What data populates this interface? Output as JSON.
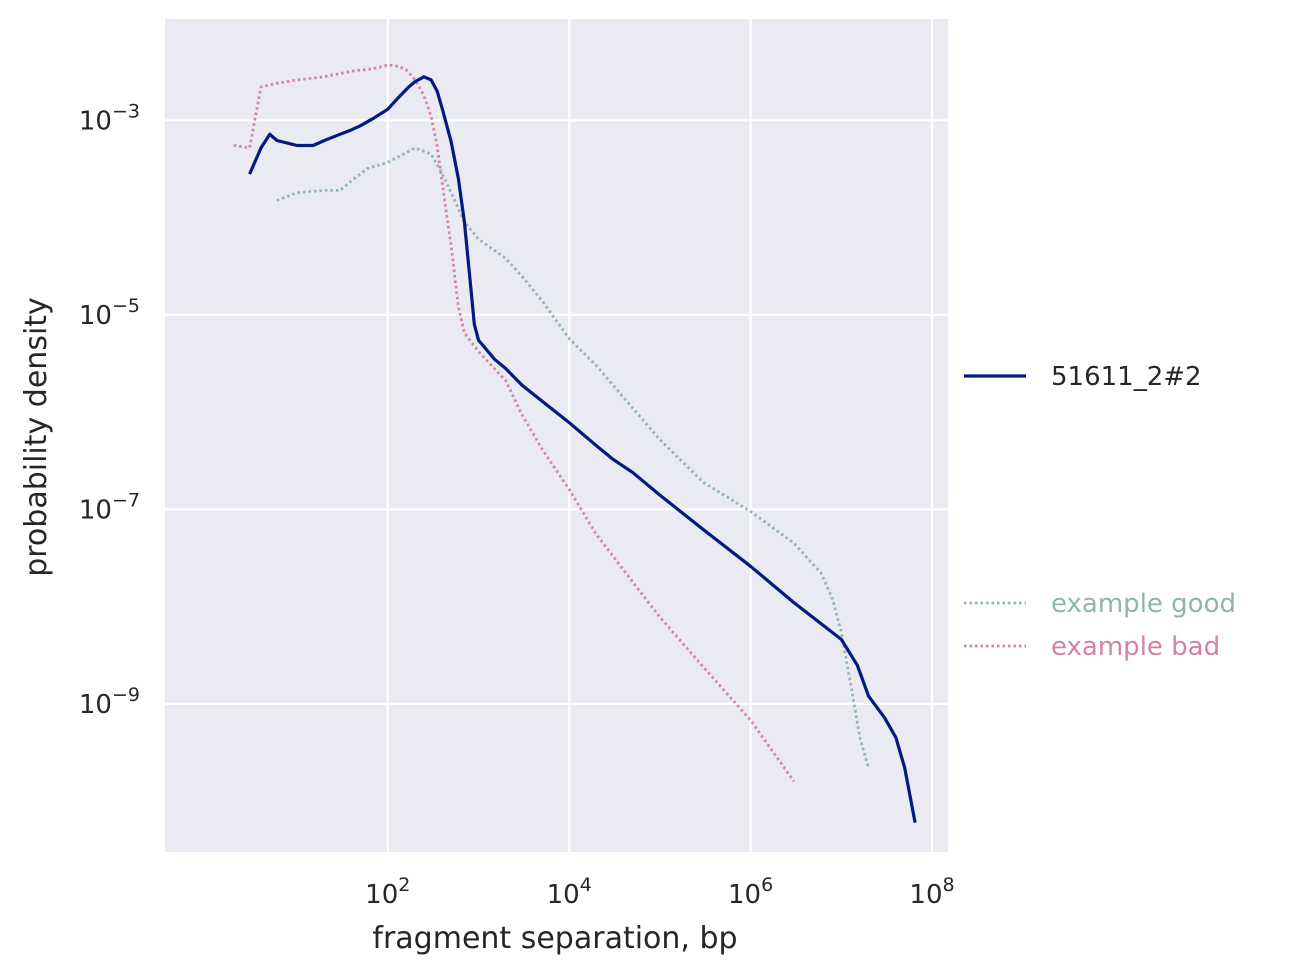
{
  "chart_data": {
    "type": "line",
    "xlabel": "fragment separation, bp",
    "ylabel": "probability density",
    "xscale": "log",
    "yscale": "log",
    "xlim": [
      0.35,
      150000000
    ],
    "ylim": [
      3e-11,
      0.011
    ],
    "grid": true,
    "x_ticks": [
      {
        "value": 100,
        "base": "10",
        "exp": "2"
      },
      {
        "value": 10000,
        "base": "10",
        "exp": "4"
      },
      {
        "value": 1000000,
        "base": "10",
        "exp": "6"
      },
      {
        "value": 100000000,
        "base": "10",
        "exp": "8"
      }
    ],
    "y_ticks": [
      {
        "value": 0.001,
        "base": "10",
        "exp": "−3"
      },
      {
        "value": 1e-05,
        "base": "10",
        "exp": "−5"
      },
      {
        "value": 1e-07,
        "base": "10",
        "exp": "−7"
      },
      {
        "value": 1e-09,
        "base": "10",
        "exp": "−9"
      }
    ],
    "legend_position": "right",
    "series": [
      {
        "name": "51611_2#2",
        "style": "solid",
        "color": "#001c7f",
        "points": [
          [
            3,
            0.00028
          ],
          [
            4,
            0.00052
          ],
          [
            5,
            0.00072
          ],
          [
            6,
            0.00062
          ],
          [
            8,
            0.00058
          ],
          [
            10,
            0.00055
          ],
          [
            15,
            0.00055
          ],
          [
            20,
            0.00062
          ],
          [
            30,
            0.00072
          ],
          [
            40,
            0.0008
          ],
          [
            50,
            0.00088
          ],
          [
            70,
            0.00105
          ],
          [
            100,
            0.0013
          ],
          [
            130,
            0.0017
          ],
          [
            170,
            0.0022
          ],
          [
            200,
            0.0025
          ],
          [
            250,
            0.0028
          ],
          [
            300,
            0.0026
          ],
          [
            350,
            0.002
          ],
          [
            400,
            0.0013
          ],
          [
            500,
            0.0006
          ],
          [
            600,
            0.00025
          ],
          [
            700,
            9e-05
          ],
          [
            800,
            2.5e-05
          ],
          [
            900,
            8e-06
          ],
          [
            1000,
            5.5e-06
          ],
          [
            1500,
            3.5e-06
          ],
          [
            2000,
            2.8e-06
          ],
          [
            3000,
            1.9e-06
          ],
          [
            5000,
            1.3e-06
          ],
          [
            10000,
            7.8e-07
          ],
          [
            20000,
            4.5e-07
          ],
          [
            30000,
            3.3e-07
          ],
          [
            50000,
            2.4e-07
          ],
          [
            100000,
            1.4e-07
          ],
          [
            300000,
            6.2e-08
          ],
          [
            1000000,
            2.6e-08
          ],
          [
            3000000,
            1.1e-08
          ],
          [
            10000000,
            4.6e-09
          ],
          [
            15000000,
            2.5e-09
          ],
          [
            20000000,
            1.2e-09
          ],
          [
            30000000,
            7.2e-10
          ],
          [
            40000000,
            4.5e-10
          ],
          [
            50000000,
            2.2e-10
          ],
          [
            65000000,
            6e-11
          ]
        ]
      },
      {
        "name": "example good",
        "style": "dotted",
        "color": "#8fb5ae",
        "points": [
          [
            6,
            0.00015
          ],
          [
            10,
            0.00018
          ],
          [
            20,
            0.00019
          ],
          [
            30,
            0.00019
          ],
          [
            40,
            0.00024
          ],
          [
            60,
            0.00032
          ],
          [
            100,
            0.00037
          ],
          [
            150,
            0.00045
          ],
          [
            200,
            0.00052
          ],
          [
            300,
            0.00045
          ],
          [
            400,
            0.00028
          ],
          [
            500,
            0.00018
          ],
          [
            700,
            9e-05
          ],
          [
            1000,
            6e-05
          ],
          [
            2000,
            3.8e-05
          ],
          [
            3000,
            2.5e-05
          ],
          [
            5000,
            1.4e-05
          ],
          [
            10000,
            5.7e-06
          ],
          [
            20000,
            3e-06
          ],
          [
            50000,
            1.1e-06
          ],
          [
            100000,
            5.2e-07
          ],
          [
            300000,
            1.9e-07
          ],
          [
            1000000,
            9.5e-08
          ],
          [
            3000000,
            4.5e-08
          ],
          [
            6000000,
            2.2e-08
          ],
          [
            8000000,
            1.2e-08
          ],
          [
            10000000,
            5.5e-09
          ],
          [
            13000000,
            1.4e-09
          ],
          [
            16000000,
            4.5e-10
          ],
          [
            20000000,
            2.2e-10
          ]
        ]
      },
      {
        "name": "example bad",
        "style": "dotted",
        "color": "#d283a6",
        "points": [
          [
            2,
            0.00055
          ],
          [
            3,
            0.00052
          ],
          [
            4,
            0.0022
          ],
          [
            6,
            0.0024
          ],
          [
            10,
            0.0026
          ],
          [
            20,
            0.0028
          ],
          [
            40,
            0.0032
          ],
          [
            70,
            0.0034
          ],
          [
            100,
            0.0037
          ],
          [
            130,
            0.0036
          ],
          [
            160,
            0.0033
          ],
          [
            200,
            0.0026
          ],
          [
            250,
            0.0018
          ],
          [
            300,
            0.0011
          ],
          [
            350,
            0.00055
          ],
          [
            400,
            0.00022
          ],
          [
            500,
            5e-05
          ],
          [
            600,
            1.2e-05
          ],
          [
            700,
            6.5e-06
          ],
          [
            1000,
            4.2e-06
          ],
          [
            1500,
            2.8e-06
          ],
          [
            2000,
            2.1e-06
          ],
          [
            3000,
            9.5e-07
          ],
          [
            5000,
            4.2e-07
          ],
          [
            10000,
            1.6e-07
          ],
          [
            20000,
            5.5e-08
          ],
          [
            50000,
            1.8e-08
          ],
          [
            100000,
            7.8e-09
          ],
          [
            300000,
            2.4e-09
          ],
          [
            1000000,
            6.8e-10
          ],
          [
            3000000,
            1.6e-10
          ]
        ]
      }
    ]
  }
}
